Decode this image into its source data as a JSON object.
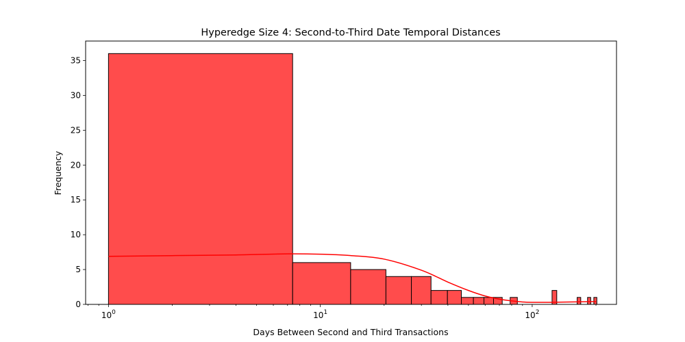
{
  "chart_data": {
    "type": "bar",
    "title": "Hyperedge Size 4: Second-to-Third Date Temporal Distances",
    "xlabel": "Days Between Second and Third Transactions",
    "ylabel": "Frequency",
    "x_scale": "log",
    "xlim": [
      0.78,
      250
    ],
    "ylim": [
      0,
      37.8
    ],
    "grid": false,
    "x_major_ticks": [
      {
        "base": "10",
        "exp": "0",
        "value": 1
      },
      {
        "base": "10",
        "exp": "1",
        "value": 10
      },
      {
        "base": "10",
        "exp": "2",
        "value": 100
      }
    ],
    "y_ticks": [
      0,
      5,
      10,
      15,
      20,
      25,
      30,
      35
    ],
    "bar_color": "#ff4c4c",
    "kde_color": "#ff0000",
    "bins": [
      {
        "x0": 1.0,
        "x1": 7.4,
        "count": 36
      },
      {
        "x0": 7.4,
        "x1": 13.9,
        "count": 6
      },
      {
        "x0": 13.9,
        "x1": 20.4,
        "count": 5
      },
      {
        "x0": 20.4,
        "x1": 26.9,
        "count": 4
      },
      {
        "x0": 26.9,
        "x1": 33.3,
        "count": 4
      },
      {
        "x0": 33.3,
        "x1": 39.8,
        "count": 2
      },
      {
        "x0": 39.8,
        "x1": 46.3,
        "count": 2
      },
      {
        "x0": 46.3,
        "x1": 52.8,
        "count": 1
      },
      {
        "x0": 52.8,
        "x1": 59.2,
        "count": 1
      },
      {
        "x0": 59.2,
        "x1": 65.7,
        "count": 1
      },
      {
        "x0": 65.7,
        "x1": 72.2,
        "count": 1
      },
      {
        "x0": 78.7,
        "x1": 85.1,
        "count": 1
      },
      {
        "x0": 124.1,
        "x1": 130.6,
        "count": 2
      },
      {
        "x0": 163.0,
        "x1": 169.5,
        "count": 1
      },
      {
        "x0": 182.5,
        "x1": 188.9,
        "count": 1
      },
      {
        "x0": 195.4,
        "x1": 201.9,
        "count": 1
      }
    ],
    "kde": {
      "x": [
        1,
        2,
        4,
        7,
        10,
        14,
        20,
        30,
        40,
        50,
        60,
        70,
        80,
        90,
        100,
        120,
        150,
        200
      ],
      "y": [
        6.9,
        7.0,
        7.1,
        7.25,
        7.2,
        7.0,
        6.5,
        4.9,
        3.2,
        2.0,
        1.2,
        0.75,
        0.5,
        0.35,
        0.3,
        0.3,
        0.35,
        0.4
      ]
    }
  }
}
